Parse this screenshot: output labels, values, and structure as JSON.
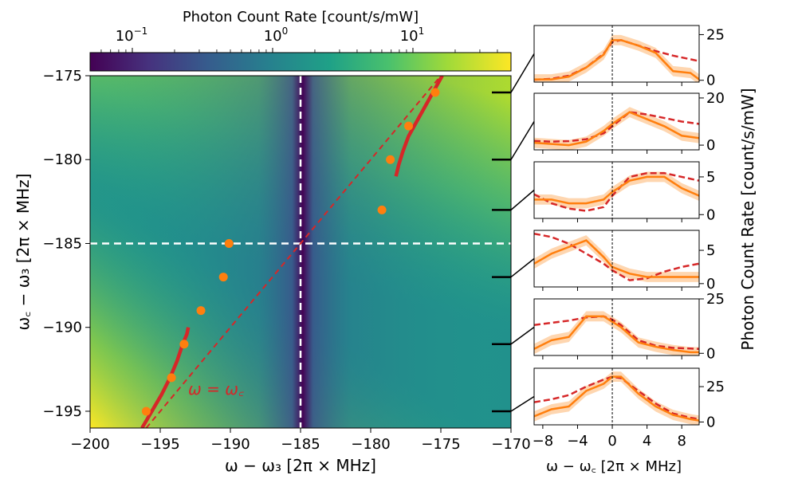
{
  "chart_data": {
    "type": "heatmap",
    "main": {
      "title": "",
      "xlabel": "ω − ω₃ [2π × MHz]",
      "ylabel": "ω꜀ − ω₃ [2π × MHz]",
      "xlim": [
        -200,
        -170
      ],
      "ylim": [
        -196,
        -175
      ],
      "x_ticks": [
        "−200",
        "−195",
        "−190",
        "−185",
        "−180",
        "−175",
        "−170"
      ],
      "x_tick_values": [
        -200,
        -195,
        -190,
        -185,
        -180,
        -175,
        -170
      ],
      "y_ticks": [
        "−175",
        "−180",
        "−185",
        "−190",
        "−195"
      ],
      "y_tick_values": [
        -175,
        -180,
        -185,
        -190,
        -195
      ],
      "colormap": "viridis",
      "resonance_x": -185,
      "resonance_y": -185,
      "annotation": "ω = ω꜀",
      "measured_points": {
        "name": "measured peaks",
        "color": "#ff7f0e",
        "x": [
          -196,
          -194.2,
          -193.3,
          -192.1,
          -190.5,
          -190.1,
          -179.2,
          -178.6,
          -177.3,
          -175.4
        ],
        "y": [
          -195,
          -193,
          -191,
          -189,
          -187,
          -185,
          -183,
          -180,
          -178,
          -176
        ]
      },
      "theory_branches": {
        "name": "theory dispersion",
        "color": "#d62728",
        "lower": {
          "x": [
            -196.3,
            -195.6,
            -194.9,
            -194.3,
            -193.8,
            -193.4,
            -193.1,
            -193.0
          ],
          "y": [
            -196,
            -195,
            -194,
            -193,
            -192,
            -191,
            -190.4,
            -190
          ]
        },
        "upper": {
          "x": [
            -178.2,
            -178.0,
            -177.7,
            -177.3,
            -176.7,
            -176.1,
            -175.5,
            -174.9
          ],
          "y": [
            -181,
            -180.3,
            -179.5,
            -178.6,
            -177.7,
            -176.8,
            -175.9,
            -175
          ]
        }
      },
      "diagonal": {
        "name": "ω = ω꜀",
        "x": [
          -196,
          -175
        ],
        "y": [
          -196,
          -175
        ]
      }
    },
    "colorbar": {
      "title": "Photon Count Rate [count/s/mW]",
      "scale": "log",
      "range": [
        0.05,
        50
      ],
      "ticks": [
        "10",
        "10",
        "10"
      ],
      "tick_exponents": [
        "−1",
        "0",
        "1"
      ],
      "tick_values": [
        0.1,
        1,
        10
      ]
    },
    "side_panels": {
      "xlabel": "ω − ω꜀ [2π × MHz]",
      "ylabel": "Photon Count Rate [count/s/mW]",
      "xlim": [
        -9,
        10
      ],
      "x_ticks": [
        "−8",
        "−4",
        "0",
        "4",
        "8"
      ],
      "x_tick_values": [
        -8,
        -4,
        0,
        4,
        8
      ],
      "panels": [
        {
          "cavity_detuning": -176,
          "ylim": [
            -1,
            30
          ],
          "yticks": [
            "25",
            "0"
          ],
          "ytick_values": [
            25,
            0
          ],
          "x": [
            -9,
            -7,
            -5,
            -3,
            -1,
            0,
            1,
            3,
            5,
            7,
            9,
            10
          ],
          "data": [
            0.5,
            0.5,
            2,
            7,
            14,
            22,
            22,
            19,
            15,
            5,
            4,
            0.5
          ],
          "theory": [
            0.3,
            0.8,
            2.5,
            7,
            14.5,
            21,
            22,
            19,
            16,
            13.5,
            11.5,
            10.5
          ]
        },
        {
          "cavity_detuning": -180,
          "ylim": [
            -2,
            22
          ],
          "yticks": [
            "20",
            "0"
          ],
          "ytick_values": [
            20,
            0
          ],
          "x": [
            -9,
            -7,
            -5,
            -3,
            -1,
            0,
            2,
            4,
            6,
            8,
            10
          ],
          "data": [
            1,
            0.5,
            0,
            1.5,
            6,
            9,
            14,
            11,
            8,
            4,
            3
          ],
          "theory": [
            1.8,
            1.5,
            1.7,
            2.5,
            5,
            8,
            14,
            13,
            11.5,
            10,
            9
          ]
        },
        {
          "cavity_detuning": -183,
          "ylim": [
            -0.5,
            7
          ],
          "yticks": [
            "5",
            "0"
          ],
          "ytick_values": [
            5,
            0
          ],
          "x": [
            -9,
            -7,
            -5,
            -3,
            -1,
            0,
            2,
            4,
            6,
            8,
            10
          ],
          "data": [
            2,
            2,
            1.5,
            1.5,
            2,
            3,
            4.5,
            5,
            5,
            3.5,
            2.5
          ],
          "theory": [
            2.7,
            1.5,
            0.8,
            0.5,
            1,
            2.5,
            5,
            5.5,
            5.5,
            5,
            4.5
          ]
        },
        {
          "cavity_detuning": -187,
          "ylim": [
            -0.5,
            8
          ],
          "yticks": [
            "5",
            "0"
          ],
          "ytick_values": [
            5,
            0
          ],
          "x": [
            -9,
            -7,
            -5,
            -3,
            -1,
            0,
            2,
            4,
            6,
            8,
            10
          ],
          "data": [
            3,
            4.5,
            5.5,
            6.5,
            4,
            2.5,
            1.5,
            1,
            1,
            1,
            1
          ],
          "theory": [
            7.5,
            7,
            6,
            4.5,
            3,
            2,
            0.5,
            0.8,
            1.8,
            2.5,
            3
          ]
        },
        {
          "cavity_detuning": -191,
          "ylim": [
            -1,
            25
          ],
          "yticks": [
            "25",
            "0"
          ],
          "ytick_values": [
            25,
            0
          ],
          "x": [
            -9,
            -7,
            -5,
            -3,
            -1,
            0,
            1,
            3,
            5,
            7,
            9,
            10
          ],
          "data": [
            2,
            6,
            7.5,
            17,
            17,
            14.5,
            12,
            5,
            3,
            1.5,
            0.5,
            0.5
          ],
          "theory": [
            13,
            14,
            15,
            16.5,
            17,
            15.5,
            13,
            6,
            3.5,
            2.5,
            2.2,
            2
          ]
        },
        {
          "cavity_detuning": -195,
          "ylim": [
            -2,
            38
          ],
          "yticks": [
            "25",
            "0"
          ],
          "ytick_values": [
            25,
            0
          ],
          "x": [
            -9,
            -7,
            -5,
            -3,
            -1,
            0,
            1,
            3,
            5,
            7,
            9,
            10
          ],
          "data": [
            4,
            9,
            11,
            22,
            27,
            32,
            32,
            20,
            11,
            5,
            2,
            1
          ],
          "theory": [
            14,
            16,
            19,
            25,
            30,
            32,
            31,
            22,
            13,
            6,
            3,
            2
          ]
        }
      ]
    }
  }
}
